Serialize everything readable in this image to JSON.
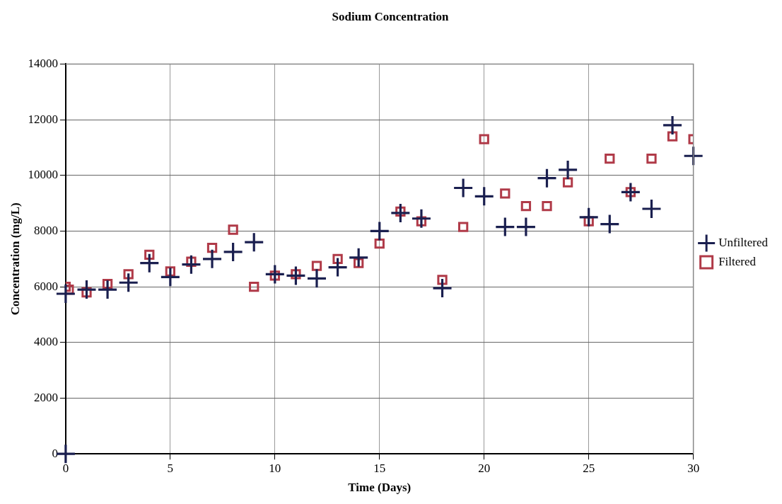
{
  "chart_data": {
    "type": "scatter",
    "title": "Sodium Concentration",
    "xlabel": "Time (Days)",
    "ylabel": "Concentration (mg/L)",
    "xlim": [
      0,
      30
    ],
    "xticks": [
      0,
      5,
      10,
      15,
      20,
      25,
      30
    ],
    "ylim": [
      0,
      14000
    ],
    "yticks": [
      0,
      2000,
      4000,
      6000,
      8000,
      10000,
      12000,
      14000
    ],
    "grid": true,
    "legend": "right",
    "series": [
      {
        "name": "Unfiltered",
        "color": "#1a1f4f",
        "marker": "cross",
        "x": [
          0,
          0,
          1,
          2,
          3,
          4,
          5,
          6,
          7,
          8,
          9,
          10,
          11,
          12,
          13,
          14,
          15,
          16,
          17,
          18,
          19,
          20,
          21,
          22,
          23,
          24,
          25,
          26,
          27,
          28,
          29,
          30
        ],
        "values": [
          5750,
          0,
          5900,
          5900,
          6150,
          6850,
          6350,
          6800,
          7000,
          7250,
          7600,
          6450,
          6400,
          6300,
          6700,
          7050,
          8000,
          8650,
          8450,
          5950,
          9550,
          9250,
          8150,
          8150,
          9900,
          10200,
          8500,
          8250,
          9400,
          8800,
          11800,
          10700
        ]
      },
      {
        "name": "Filtered",
        "color": "#b03a48",
        "marker": "square",
        "x": [
          0,
          0.15,
          1,
          2,
          3,
          4,
          5,
          6,
          7,
          8,
          9,
          10,
          11,
          12,
          13,
          14,
          15,
          16,
          17,
          18,
          19,
          20,
          21,
          22,
          23,
          24,
          25,
          26,
          27,
          28,
          29,
          30
        ],
        "values": [
          6000,
          5900,
          5800,
          6100,
          6450,
          7150,
          6550,
          6900,
          7400,
          8050,
          6000,
          6400,
          6450,
          6750,
          7000,
          6850,
          7550,
          8700,
          8350,
          6250,
          8150,
          11300,
          9350,
          8900,
          8900,
          9750,
          8350,
          10600,
          9400,
          10600,
          11400,
          11300
        ]
      }
    ]
  }
}
